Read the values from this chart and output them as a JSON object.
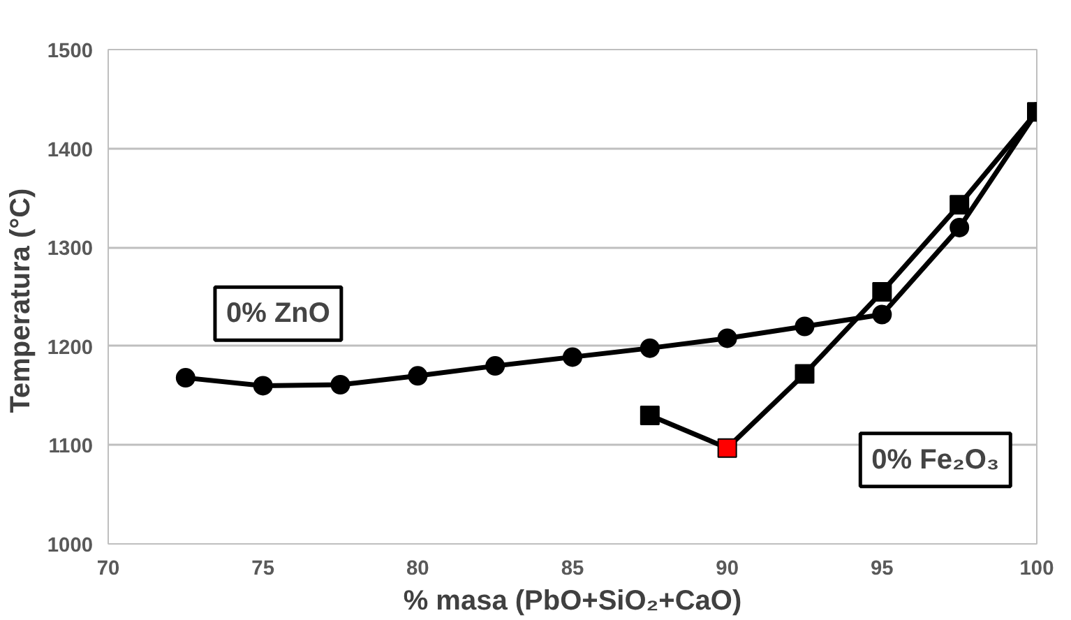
{
  "chart_data": {
    "type": "line",
    "xlabel": "% masa (PbO+SiO₂+CaO)",
    "ylabel": "Temperatura  (°C)",
    "xlim": [
      70,
      100
    ],
    "xticks": [
      70,
      75,
      80,
      85,
      90,
      95,
      100
    ],
    "ylim": [
      1000,
      1500
    ],
    "yticks": [
      1000,
      1100,
      1200,
      1300,
      1400,
      1500
    ],
    "grid": "y",
    "series": [
      {
        "name": "0% ZnO",
        "color": "#000000",
        "marker": "circle",
        "x": [
          72.5,
          75,
          77.5,
          80,
          82.5,
          85,
          87.5,
          90,
          92.5,
          95,
          97.5,
          100
        ],
        "values": [
          1168,
          1160,
          1161,
          1170,
          1180,
          1189,
          1198,
          1208,
          1220,
          1232,
          1320,
          1437
        ]
      },
      {
        "name": "0% Fe₂O₃",
        "color": "#000000",
        "marker": "square",
        "x": [
          87.5,
          90,
          92.5,
          95,
          97.5,
          100
        ],
        "values": [
          1130,
          1097,
          1172,
          1255,
          1343,
          1437
        ],
        "colors": [
          "#000000",
          "#ff0000",
          "#000000",
          "#000000",
          "#000000",
          "#000000"
        ]
      }
    ]
  }
}
